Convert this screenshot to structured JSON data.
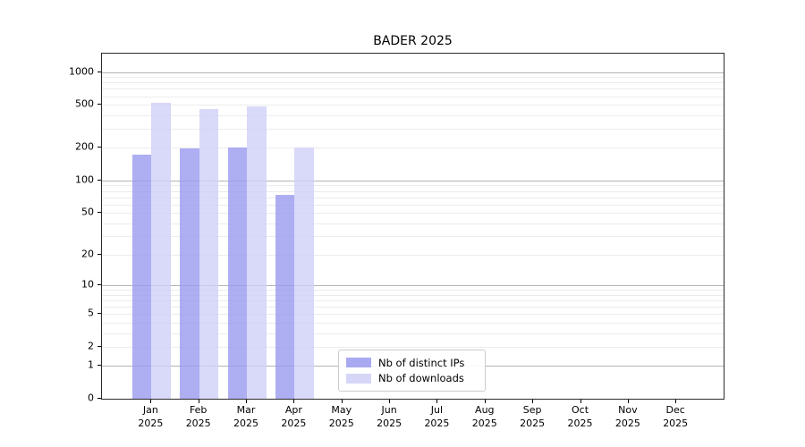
{
  "title": "BADER 2025",
  "chart_data": {
    "type": "bar",
    "title": "BADER 2025",
    "yscale": "log1p",
    "grid": "on",
    "legend_position": "lower center",
    "categories": [
      "Jan 2025",
      "Feb 2025",
      "Mar 2025",
      "Apr 2025",
      "May 2025",
      "Jun 2025",
      "Jul 2025",
      "Aug 2025",
      "Sep 2025",
      "Oct 2025",
      "Nov 2025",
      "Dec 2025"
    ],
    "y_tick_labels": [
      0,
      1,
      2,
      5,
      10,
      20,
      50,
      100,
      200,
      500,
      1000
    ],
    "ylim": [
      0,
      1475
    ],
    "series": [
      {
        "name": "Nb of distinct IPs",
        "color": "#9a9af0",
        "values": [
          167,
          190,
          196,
          71,
          null,
          null,
          null,
          null,
          null,
          null,
          null,
          null
        ]
      },
      {
        "name": "Nb of downloads",
        "color": "#cfcff7",
        "values": [
          505,
          440,
          465,
          193,
          null,
          null,
          null,
          null,
          null,
          null,
          null,
          null
        ]
      }
    ]
  }
}
